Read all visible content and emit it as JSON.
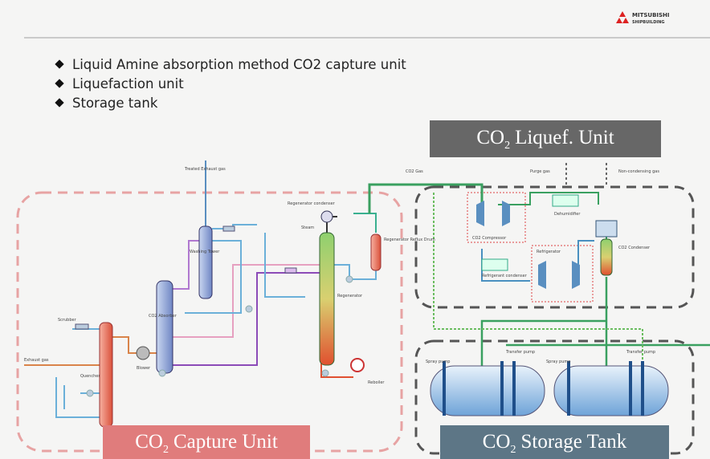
{
  "header": {
    "logo": [
      "MITSUBISHI",
      "SHIPBUILDING"
    ]
  },
  "bullets": [
    "Liquid Amine absorption method CO2 capture unit",
    "Liquefaction unit",
    "Storage tank"
  ],
  "sections": {
    "liquef": {
      "prefix": "CO",
      "sub": "2",
      "suffix": "Liquef. Unit"
    },
    "capture": {
      "prefix": "CO",
      "sub": "2",
      "suffix": "Capture Unit"
    },
    "storage": {
      "prefix": "CO",
      "sub": "2",
      "suffix": "Storage Tank"
    }
  },
  "labels": [
    "Treated Exhaust gas",
    "Scrubber",
    "Regenerator condenser",
    "Steam",
    "Washing Tower",
    "CO2 Absorber",
    "Quencher",
    "Blower",
    "Exhaust gas",
    "Regenerator",
    "Reboiler",
    "Regenerator Reflux Drum",
    "CO2 Gas",
    "Purge gas",
    "Non-condensing gas",
    "CO2 Compressor",
    "Dehumidifier",
    "CO2 Condenser",
    "Refrigerant condenser",
    "Refrigerator",
    "Spray pump",
    "Transfer pump",
    "Spray pump",
    "Transfer pump"
  ]
}
